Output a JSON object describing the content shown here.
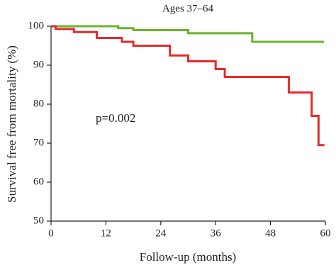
{
  "chart_data": {
    "type": "step",
    "title": "Ages 37–64",
    "x_label": "Follow-up (months)",
    "y_label": "Survival free from mortality (%)",
    "annotation": "p=0.002",
    "xlim": [
      0,
      60
    ],
    "xticks": [
      0,
      12,
      24,
      36,
      48,
      60
    ],
    "ylim": [
      50,
      100
    ],
    "yticks": [
      50,
      60,
      70,
      80,
      90,
      100
    ],
    "series": [
      {
        "color": "#6ab42d",
        "x": [
          0,
          14.7,
          18,
          30,
          44,
          59.7
        ],
        "values": [
          100,
          99.5,
          99,
          98.2,
          96,
          96
        ]
      },
      {
        "color": "#e32b2b",
        "x": [
          0,
          1,
          5,
          10,
          15.5,
          18,
          26,
          30,
          36,
          38,
          52,
          57,
          58.5,
          59.8
        ],
        "values": [
          100,
          99.3,
          98.5,
          97,
          96,
          95,
          92.5,
          91,
          89,
          87,
          83,
          77,
          69.5,
          69.5
        ]
      }
    ]
  }
}
